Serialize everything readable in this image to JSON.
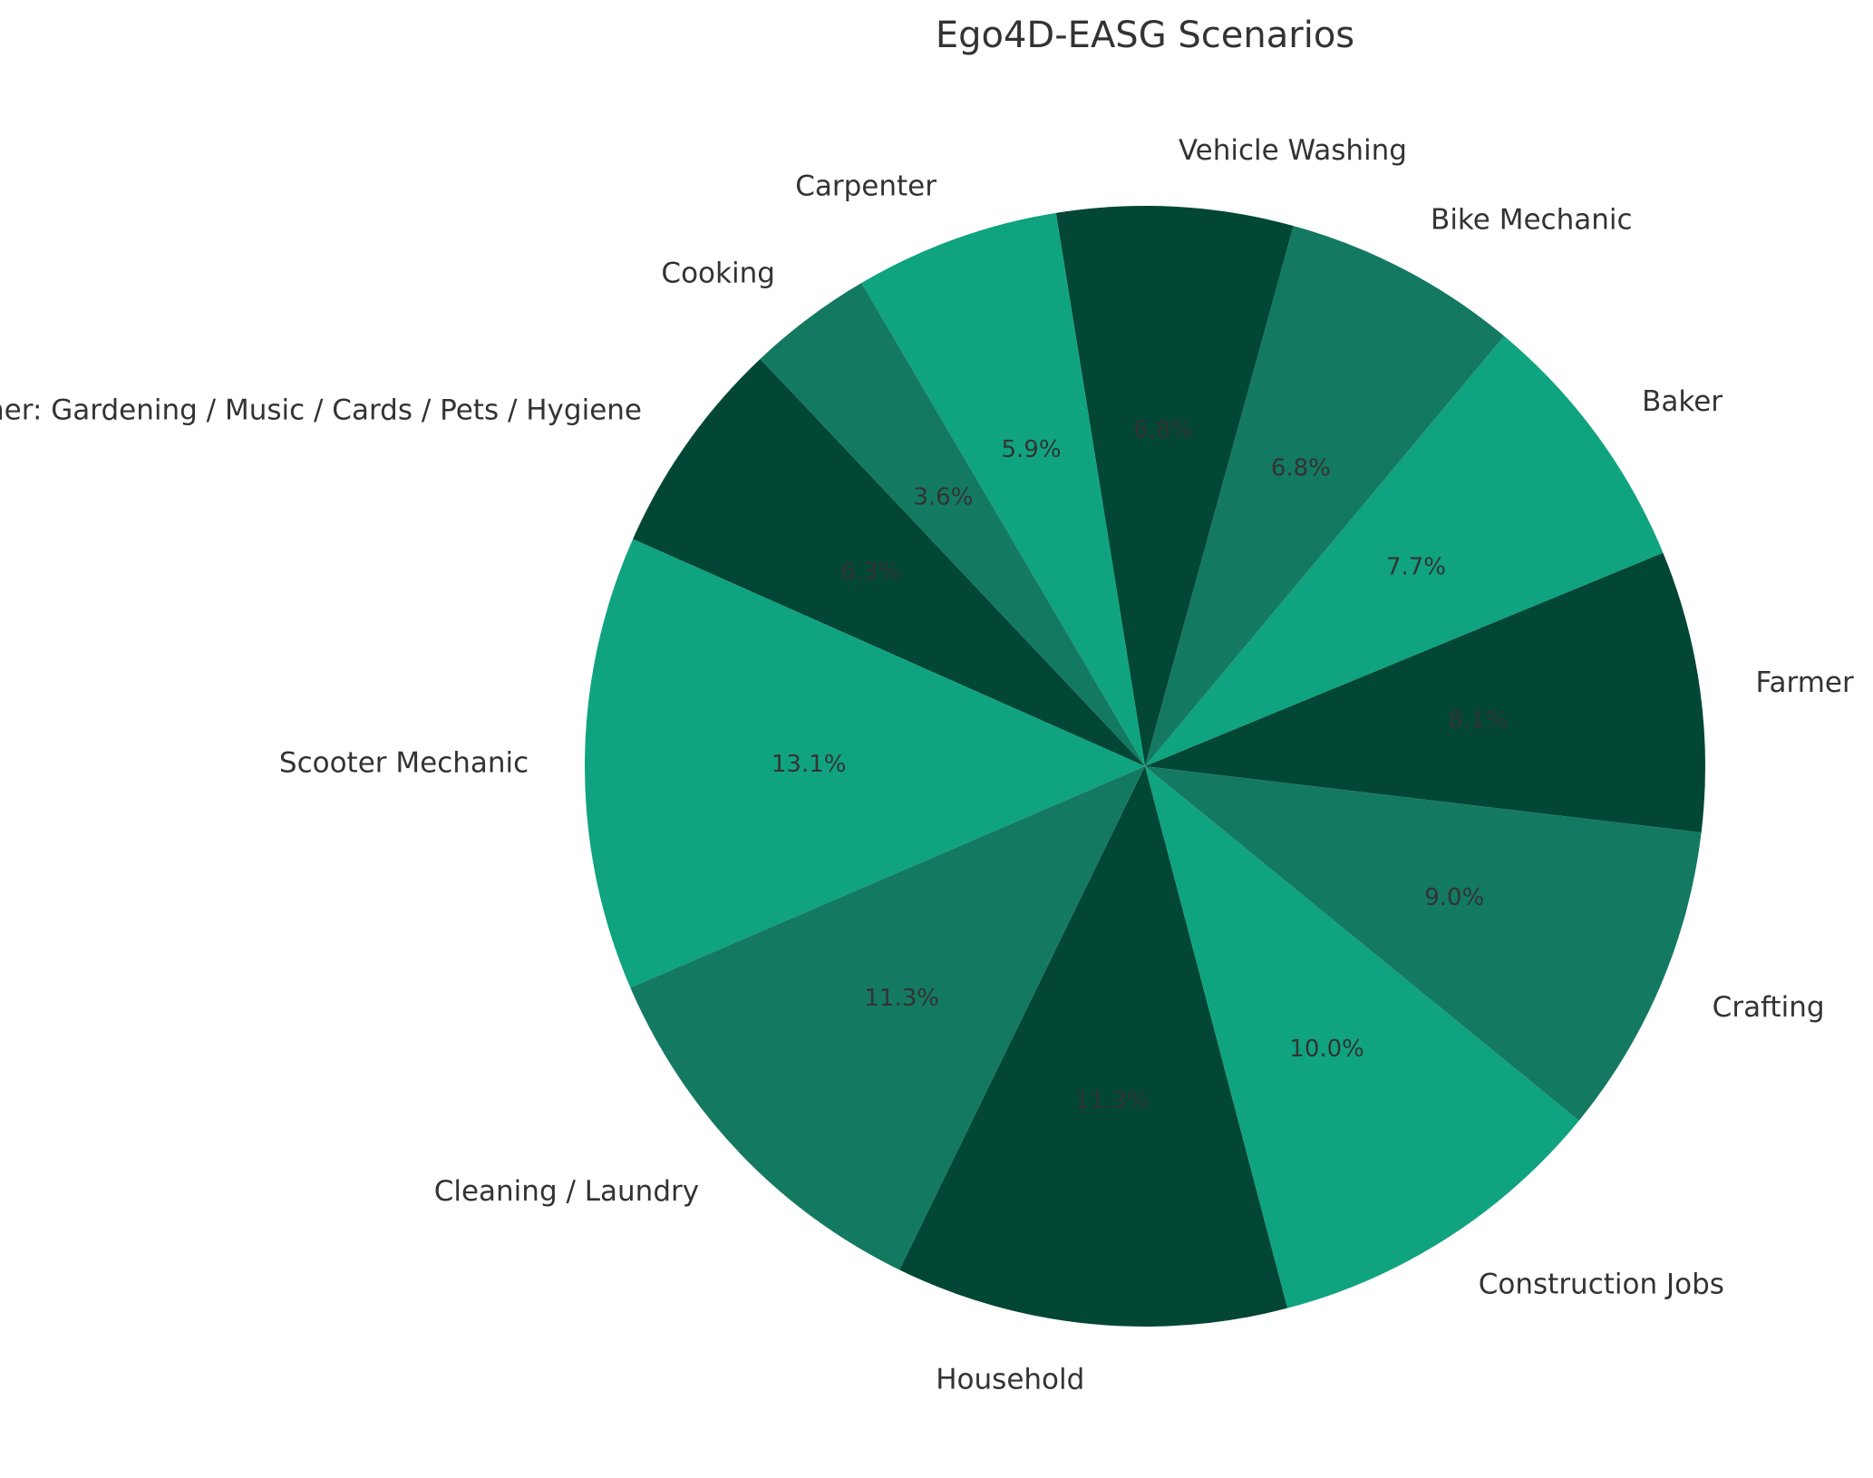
{
  "chart_data": {
    "type": "pie",
    "title": "Ego4D-EASG Scenarios",
    "start_angle_deg": -6.8,
    "direction": "counterclockwise",
    "slices": [
      {
        "label": "Farmer",
        "value": 8.1,
        "pct_label": "8.1%",
        "color": "#024735"
      },
      {
        "label": "Baker",
        "value": 7.7,
        "pct_label": "7.7%",
        "color": "#10a37f"
      },
      {
        "label": "Bike Mechanic",
        "value": 6.8,
        "pct_label": "6.8%",
        "color": "#147961"
      },
      {
        "label": "Vehicle Washing",
        "value": 6.8,
        "pct_label": "6.8%",
        "color": "#024735"
      },
      {
        "label": "Carpenter",
        "value": 5.9,
        "pct_label": "5.9%",
        "color": "#10a37f"
      },
      {
        "label": "Cooking",
        "value": 3.6,
        "pct_label": "3.6%",
        "color": "#147961"
      },
      {
        "label": "Other: Gardening / Music / Cards / Pets / Hygiene",
        "value": 6.3,
        "pct_label": "6.3%",
        "color": "#024735"
      },
      {
        "label": "Scooter Mechanic",
        "value": 13.1,
        "pct_label": "13.1%",
        "color": "#10a37f"
      },
      {
        "label": "Cleaning / Laundry",
        "value": 11.3,
        "pct_label": "11.3%",
        "color": "#147961"
      },
      {
        "label": "Household",
        "value": 11.3,
        "pct_label": "11.3%",
        "color": "#024735"
      },
      {
        "label": "Construction Jobs",
        "value": 10.0,
        "pct_label": "10.0%",
        "color": "#10a37f"
      },
      {
        "label": "Crafting",
        "value": 9.0,
        "pct_label": "9.0%",
        "color": "#147961"
      }
    ]
  }
}
